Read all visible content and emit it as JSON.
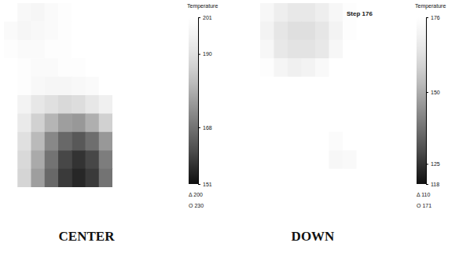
{
  "chart_data": [
    {
      "type": "heatmap",
      "title": "CENTER",
      "tick_labels": false,
      "colorbar": {
        "title": "Temperature",
        "range": [
          151,
          201
        ],
        "ticks": [
          201,
          190,
          168,
          151
        ]
      },
      "annotations": [
        "Δ 200",
        "O 230"
      ],
      "cells": [
        [
          201,
          198,
          197,
          199,
          200,
          201,
          201,
          201,
          201,
          201,
          201,
          201
        ],
        [
          199,
          197,
          198,
          199,
          200,
          201,
          201,
          201,
          201,
          201,
          201,
          201
        ],
        [
          200,
          199,
          199,
          200,
          200,
          201,
          201,
          201,
          201,
          201,
          201,
          201
        ],
        [
          201,
          200,
          199,
          199,
          200,
          200,
          201,
          201,
          201,
          201,
          201,
          201
        ],
        [
          201,
          200,
          198,
          197,
          197,
          198,
          199,
          201,
          201,
          201,
          201,
          201
        ],
        [
          201,
          196,
          192,
          190,
          188,
          189,
          192,
          195,
          201,
          201,
          201,
          201
        ],
        [
          201,
          193,
          186,
          180,
          176,
          175,
          179,
          186,
          201,
          201,
          201,
          201
        ],
        [
          201,
          190,
          181,
          172,
          166,
          163,
          167,
          175,
          201,
          201,
          201,
          201
        ],
        [
          201,
          188,
          178,
          168,
          160,
          157,
          160,
          170,
          201,
          201,
          201,
          201
        ],
        [
          201,
          187,
          176,
          166,
          158,
          155,
          158,
          168,
          201,
          201,
          201,
          201
        ]
      ]
    },
    {
      "type": "heatmap",
      "title": "DOWN",
      "subtitle": "Step 176",
      "tick_labels": false,
      "colorbar": {
        "title": "Temperature",
        "range": [
          118,
          176
        ],
        "ticks": [
          176,
          150,
          125,
          118
        ]
      },
      "annotations": [
        "Δ 110",
        "O 171"
      ],
      "cells": [
        [
          176,
          176,
          172,
          168,
          166,
          166,
          168,
          172,
          175,
          176,
          176,
          176
        ],
        [
          176,
          176,
          170,
          165,
          163,
          163,
          165,
          170,
          175,
          176,
          176,
          176
        ],
        [
          176,
          176,
          172,
          166,
          164,
          164,
          166,
          172,
          176,
          176,
          176,
          176
        ],
        [
          176,
          176,
          175,
          171,
          169,
          170,
          173,
          176,
          176,
          176,
          176,
          176
        ],
        [
          176,
          176,
          176,
          176,
          176,
          176,
          176,
          176,
          176,
          176,
          176,
          176
        ],
        [
          176,
          176,
          176,
          176,
          176,
          176,
          176,
          176,
          176,
          176,
          176,
          176
        ],
        [
          176,
          176,
          176,
          176,
          176,
          176,
          176,
          176,
          176,
          176,
          176,
          176
        ],
        [
          176,
          176,
          176,
          176,
          176,
          176,
          176,
          174,
          176,
          176,
          176,
          176
        ],
        [
          176,
          176,
          176,
          176,
          176,
          176,
          176,
          172,
          173,
          176,
          176,
          176
        ],
        [
          176,
          176,
          176,
          176,
          176,
          176,
          176,
          176,
          176,
          176,
          176,
          176
        ]
      ]
    }
  ]
}
